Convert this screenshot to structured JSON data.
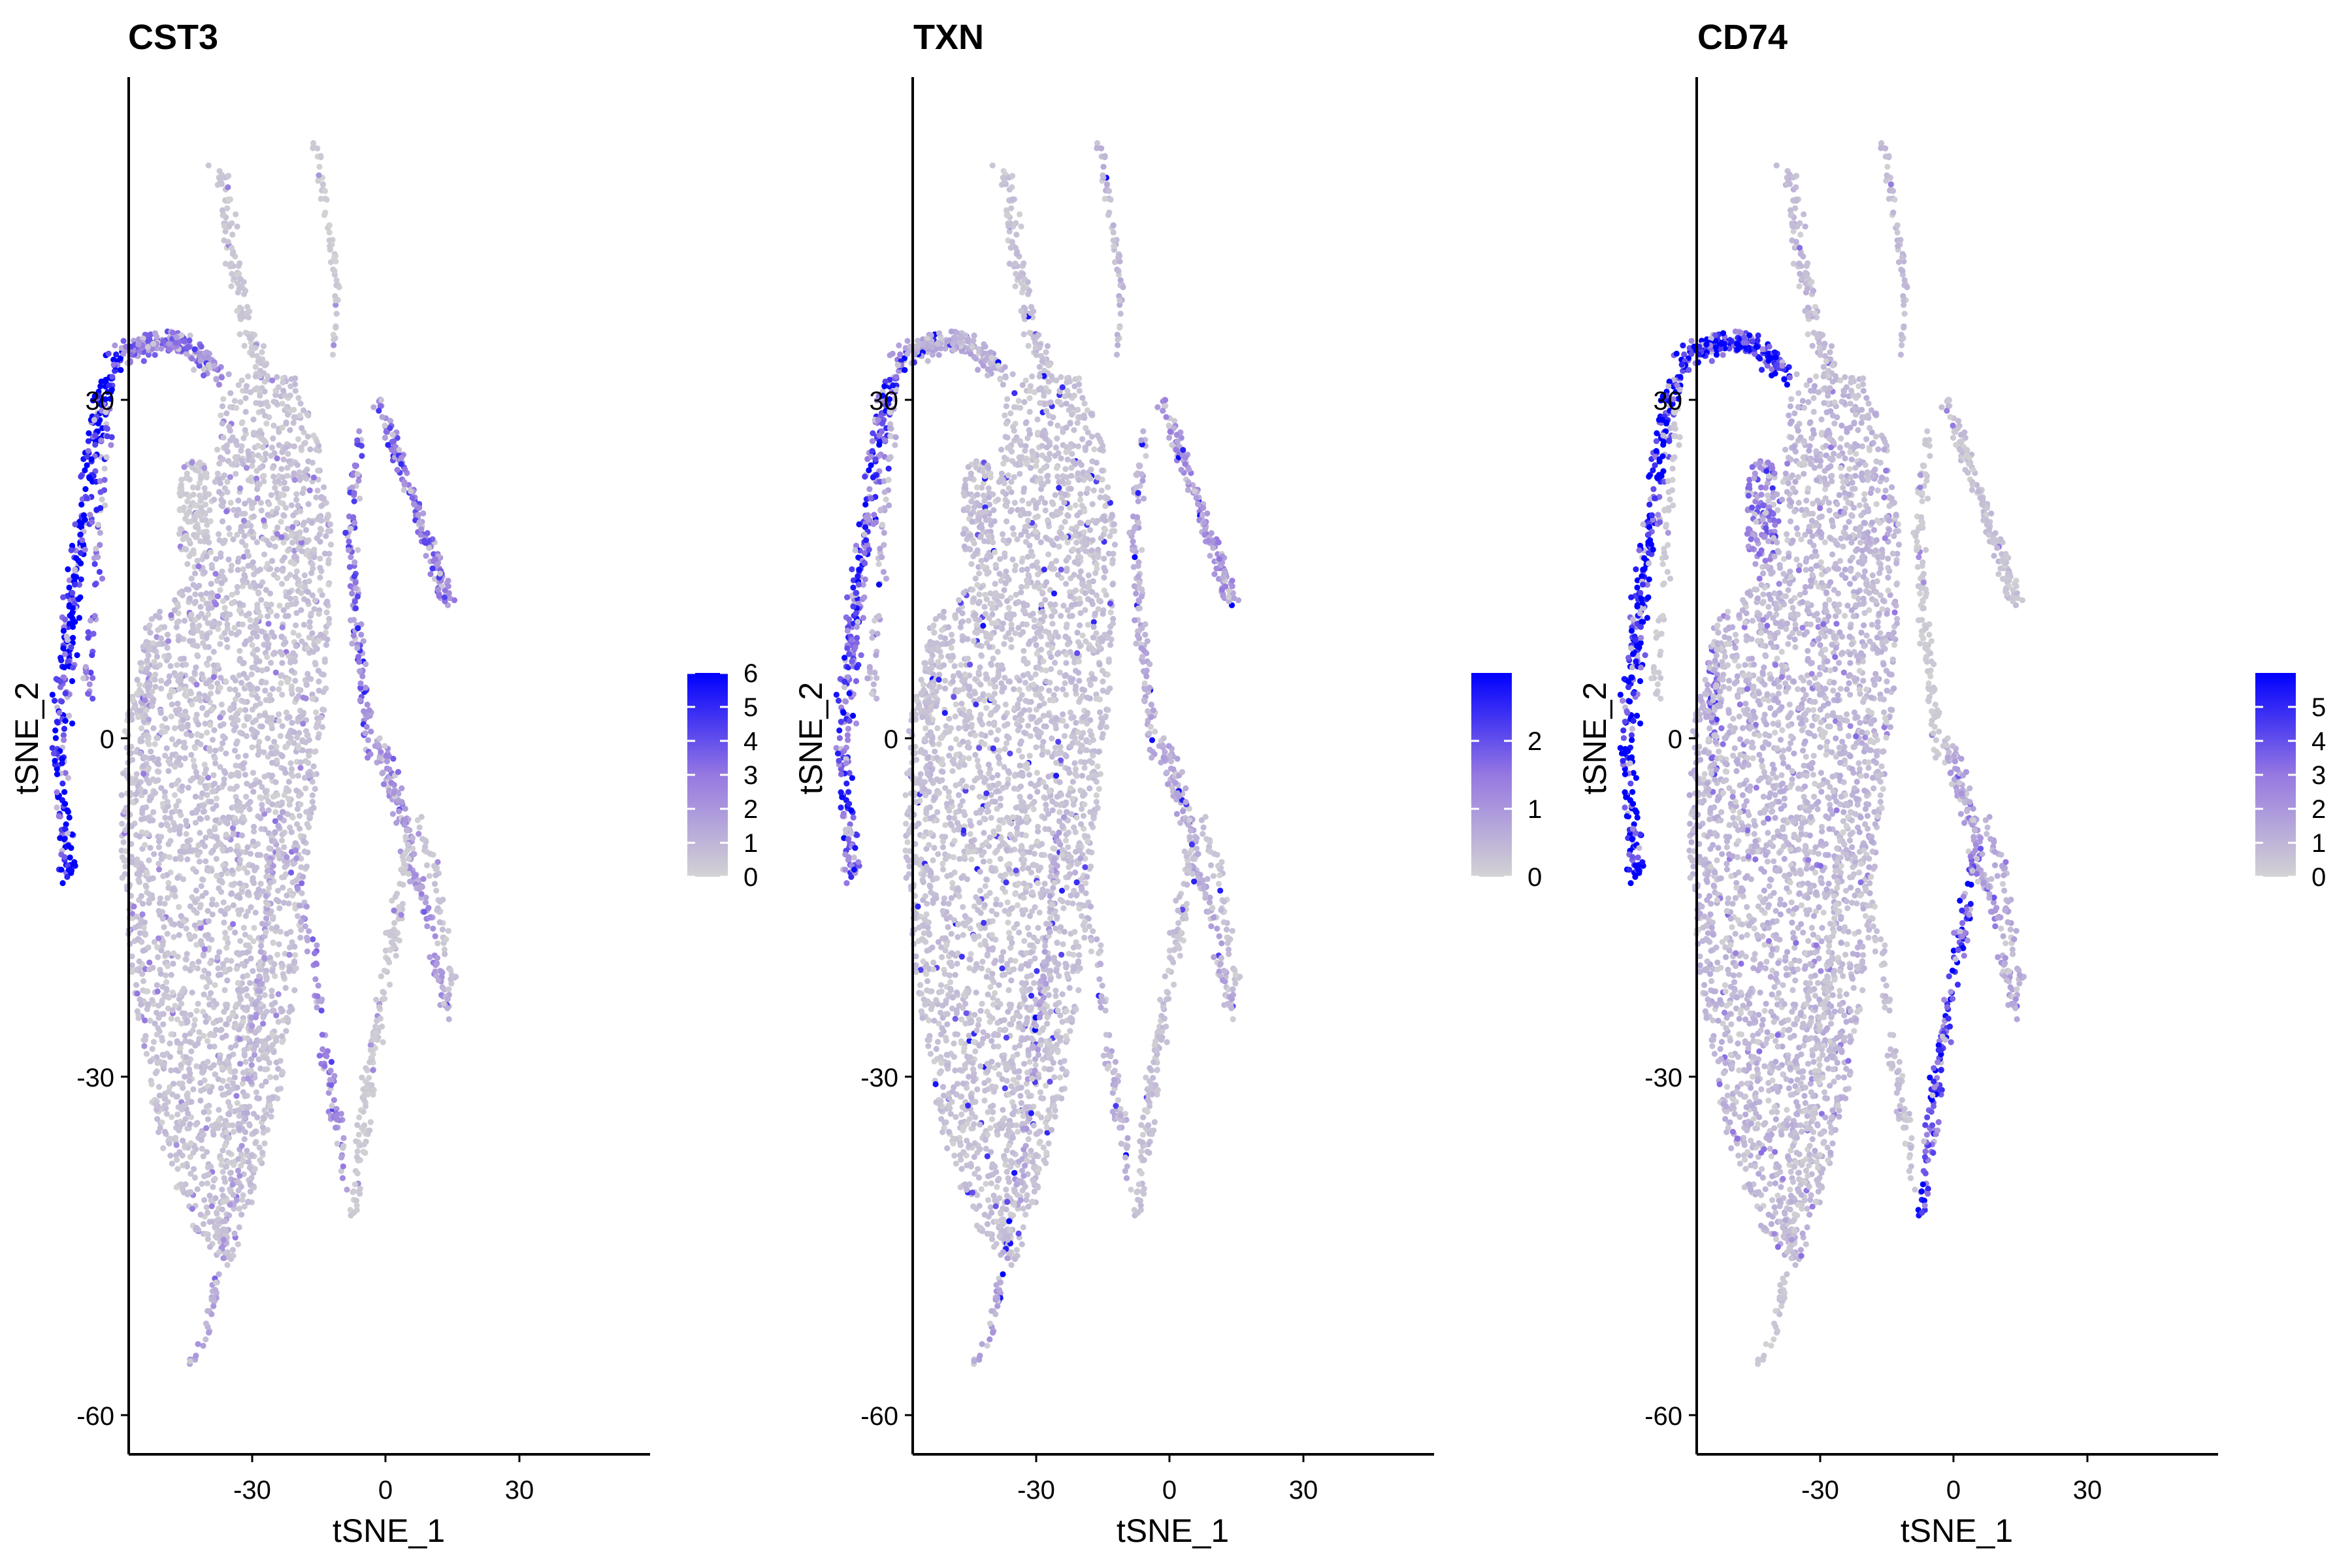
{
  "chart_data": [
    {
      "type": "scatter",
      "title": "CST3",
      "xlabel": "tSNE_1",
      "ylabel": "tSNE_2",
      "xlim": [
        -45,
        47
      ],
      "ylim": [
        -64,
        59
      ],
      "xticks": [
        -30,
        0,
        30
      ],
      "yticks": [
        -60,
        -30,
        0,
        30
      ],
      "grid": false,
      "colorbar": {
        "min": 0,
        "max": 6,
        "ticks": [
          0,
          1,
          2,
          3,
          4,
          5,
          6
        ],
        "low_color": "#d3d3d3",
        "high_color": "#0000ff"
      },
      "clusters": [
        {
          "expr": 5.4
        },
        {
          "expr": 2.6
        },
        {
          "expr": 0.3
        },
        {
          "expr": 1.0
        },
        {
          "expr": 0.4
        },
        {
          "expr": 0.3
        },
        {
          "expr": 0.6
        },
        {
          "expr": 2.9
        },
        {
          "expr": 1.4
        },
        {
          "expr": 2.4
        },
        {
          "expr": 3.0
        },
        {
          "expr": 3.0
        },
        {
          "expr": 1.8
        },
        {
          "expr": 0.3
        },
        {
          "expr": 0.5
        }
      ]
    },
    {
      "type": "scatter",
      "title": "TXN",
      "xlabel": "tSNE_1",
      "ylabel": "tSNE_2",
      "xlim": [
        -45,
        47
      ],
      "ylim": [
        -64,
        59
      ],
      "xticks": [
        -30,
        0,
        30
      ],
      "yticks": [
        -60,
        -30,
        0,
        30
      ],
      "grid": false,
      "colorbar": {
        "min": 0,
        "max": 3,
        "ticks": [
          0,
          1,
          2
        ],
        "low_color": "#d3d3d3",
        "high_color": "#0000ff"
      },
      "clusters": [
        {
          "expr": 1.9
        },
        {
          "expr": 0.6
        },
        {
          "expr": 0.35
        },
        {
          "expr": 0.35
        },
        {
          "expr": 0.3
        },
        {
          "expr": 0.45
        },
        {
          "expr": 0.3
        },
        {
          "expr": 0.6
        },
        {
          "expr": 0.7
        },
        {
          "expr": 0.5
        },
        {
          "expr": 0.6
        },
        {
          "expr": 1.0
        },
        {
          "expr": 0.6
        },
        {
          "expr": 0.3
        },
        {
          "expr": 0.3
        }
      ]
    },
    {
      "type": "scatter",
      "title": "CD74",
      "xlabel": "tSNE_1",
      "ylabel": "tSNE_2",
      "xlim": [
        -45,
        47
      ],
      "ylim": [
        -64,
        59
      ],
      "xticks": [
        -30,
        0,
        30
      ],
      "yticks": [
        -60,
        -30,
        0,
        30
      ],
      "grid": false,
      "colorbar": {
        "min": 0,
        "max": 6,
        "ticks": [
          0,
          1,
          2,
          3,
          4,
          5
        ],
        "low_color": "#d3d3d3",
        "high_color": "#0000ff"
      },
      "clusters": [
        {
          "expr": 5.6
        },
        {
          "expr": 5.0
        },
        {
          "expr": 2.6
        },
        {
          "expr": 3.0
        },
        {
          "expr": 0.8
        },
        {
          "expr": 0.7
        },
        {
          "expr": 0.9
        },
        {
          "expr": 0.3
        },
        {
          "expr": 0.4
        },
        {
          "expr": 0.6
        },
        {
          "expr": 0.3
        },
        {
          "expr": 0.6
        },
        {
          "expr": 1.4
        },
        {
          "expr": 4.2
        },
        {
          "expr": 1.2
        }
      ]
    }
  ]
}
